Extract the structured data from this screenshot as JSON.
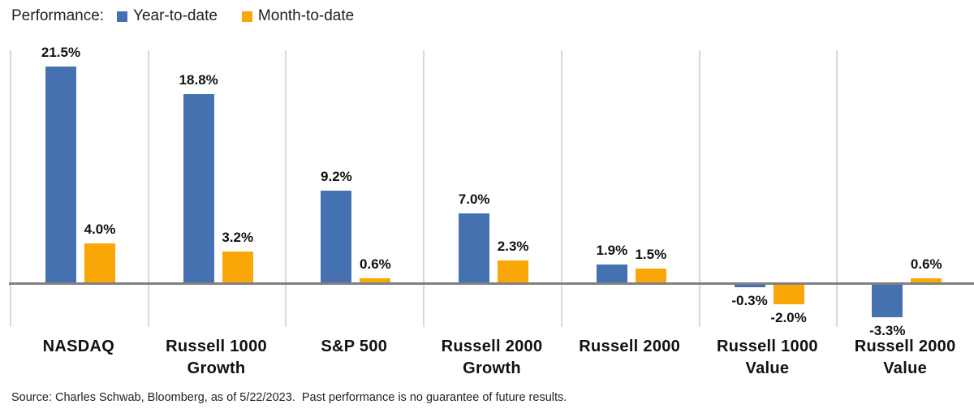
{
  "legend": {
    "title": "Performance:"
  },
  "chart_data": {
    "type": "bar",
    "categories": [
      "NASDAQ",
      "Russell 1000 Growth",
      "S&P 500",
      "Russell 2000 Growth",
      "Russell 2000",
      "Russell 1000 Value",
      "Russell 2000 Value"
    ],
    "category_label_lines": [
      [
        "NASDAQ"
      ],
      [
        "Russell 1000",
        "Growth"
      ],
      [
        "S&P 500"
      ],
      [
        "Russell 2000",
        "Growth"
      ],
      [
        "Russell 2000"
      ],
      [
        "Russell 1000",
        "Value"
      ],
      [
        "Russell 2000",
        "Value"
      ]
    ],
    "series": [
      {
        "name": "Year-to-date",
        "color": "#4571B1",
        "values": [
          21.5,
          18.8,
          9.2,
          7.0,
          1.9,
          -0.3,
          -3.3
        ],
        "data_labels": [
          "21.5%",
          "18.8%",
          "9.2%",
          "7.0%",
          "1.9%",
          "-0.3%",
          "-3.3%"
        ]
      },
      {
        "name": "Month-to-date",
        "color": "#F8A706",
        "values": [
          4.0,
          3.2,
          0.6,
          2.3,
          1.5,
          -2.0,
          0.6
        ],
        "data_labels": [
          "4.0%",
          "3.2%",
          "0.6%",
          "2.3%",
          "1.5%",
          "-2.0%",
          "0.6%"
        ]
      }
    ],
    "xlabel": "",
    "ylabel": "",
    "ylim": [
      -4.5,
      23
    ],
    "value_unit": "%",
    "legend_position": "top-left",
    "grid": "vertical-category-separators",
    "gridline_color": "#D9D9D9",
    "baseline_color": "#808080",
    "label_color": "#111111"
  },
  "footer": {
    "source": "Source: Charles Schwab, Bloomberg, as of 5/22/2023.  Past performance is no guarantee of future results."
  }
}
